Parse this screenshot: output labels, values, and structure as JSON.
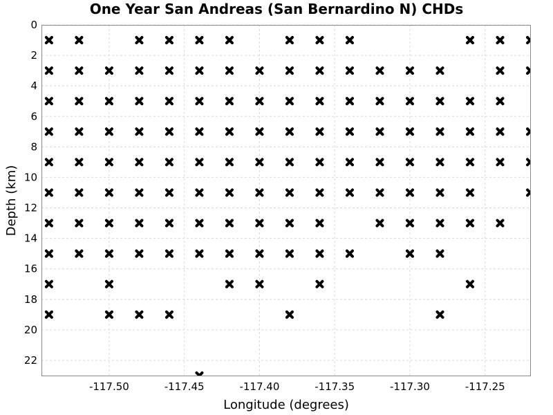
{
  "chart_data": {
    "type": "scatter",
    "title": "One Year San Andreas (San Bernardino N) CHDs",
    "xlabel": "Longitude (degrees)",
    "ylabel": "Depth (km)",
    "xlim": [
      -117.545,
      -117.22
    ],
    "ylim": [
      0,
      23
    ],
    "y_inverted": true,
    "grid": true,
    "marker": "x",
    "marker_color": "#000000",
    "x_ticks": [
      -117.5,
      -117.45,
      -117.4,
      -117.35,
      -117.3,
      -117.25
    ],
    "x_tick_labels": [
      "-117.50",
      "-117.45",
      "-117.40",
      "-117.35",
      "-117.30",
      "-117.25"
    ],
    "y_ticks": [
      0,
      2,
      4,
      6,
      8,
      10,
      12,
      14,
      16,
      18,
      20,
      22
    ],
    "y_tick_labels": [
      "0",
      "2",
      "4",
      "6",
      "8",
      "10",
      "12",
      "14",
      "16",
      "18",
      "20",
      "22"
    ],
    "points": [
      [
        -117.54,
        1
      ],
      [
        -117.52,
        1
      ],
      [
        -117.48,
        1
      ],
      [
        -117.46,
        1
      ],
      [
        -117.44,
        1
      ],
      [
        -117.42,
        1
      ],
      [
        -117.38,
        1
      ],
      [
        -117.36,
        1
      ],
      [
        -117.34,
        1
      ],
      [
        -117.26,
        1
      ],
      [
        -117.24,
        1
      ],
      [
        -117.22,
        1
      ],
      [
        -117.54,
        3
      ],
      [
        -117.52,
        3
      ],
      [
        -117.5,
        3
      ],
      [
        -117.48,
        3
      ],
      [
        -117.46,
        3
      ],
      [
        -117.44,
        3
      ],
      [
        -117.42,
        3
      ],
      [
        -117.4,
        3
      ],
      [
        -117.38,
        3
      ],
      [
        -117.36,
        3
      ],
      [
        -117.34,
        3
      ],
      [
        -117.32,
        3
      ],
      [
        -117.3,
        3
      ],
      [
        -117.28,
        3
      ],
      [
        -117.24,
        3
      ],
      [
        -117.22,
        3
      ],
      [
        -117.54,
        5
      ],
      [
        -117.52,
        5
      ],
      [
        -117.5,
        5
      ],
      [
        -117.48,
        5
      ],
      [
        -117.46,
        5
      ],
      [
        -117.44,
        5
      ],
      [
        -117.42,
        5
      ],
      [
        -117.4,
        5
      ],
      [
        -117.38,
        5
      ],
      [
        -117.36,
        5
      ],
      [
        -117.34,
        5
      ],
      [
        -117.32,
        5
      ],
      [
        -117.3,
        5
      ],
      [
        -117.28,
        5
      ],
      [
        -117.26,
        5
      ],
      [
        -117.24,
        5
      ],
      [
        -117.54,
        7
      ],
      [
        -117.52,
        7
      ],
      [
        -117.5,
        7
      ],
      [
        -117.48,
        7
      ],
      [
        -117.46,
        7
      ],
      [
        -117.44,
        7
      ],
      [
        -117.42,
        7
      ],
      [
        -117.4,
        7
      ],
      [
        -117.38,
        7
      ],
      [
        -117.36,
        7
      ],
      [
        -117.34,
        7
      ],
      [
        -117.32,
        7
      ],
      [
        -117.3,
        7
      ],
      [
        -117.28,
        7
      ],
      [
        -117.26,
        7
      ],
      [
        -117.24,
        7
      ],
      [
        -117.22,
        7
      ],
      [
        -117.54,
        9
      ],
      [
        -117.52,
        9
      ],
      [
        -117.5,
        9
      ],
      [
        -117.48,
        9
      ],
      [
        -117.46,
        9
      ],
      [
        -117.44,
        9
      ],
      [
        -117.42,
        9
      ],
      [
        -117.4,
        9
      ],
      [
        -117.38,
        9
      ],
      [
        -117.36,
        9
      ],
      [
        -117.34,
        9
      ],
      [
        -117.32,
        9
      ],
      [
        -117.3,
        9
      ],
      [
        -117.28,
        9
      ],
      [
        -117.26,
        9
      ],
      [
        -117.24,
        9
      ],
      [
        -117.22,
        9
      ],
      [
        -117.54,
        11
      ],
      [
        -117.52,
        11
      ],
      [
        -117.5,
        11
      ],
      [
        -117.48,
        11
      ],
      [
        -117.46,
        11
      ],
      [
        -117.44,
        11
      ],
      [
        -117.42,
        11
      ],
      [
        -117.4,
        11
      ],
      [
        -117.38,
        11
      ],
      [
        -117.36,
        11
      ],
      [
        -117.34,
        11
      ],
      [
        -117.32,
        11
      ],
      [
        -117.3,
        11
      ],
      [
        -117.28,
        11
      ],
      [
        -117.26,
        11
      ],
      [
        -117.22,
        11
      ],
      [
        -117.54,
        13
      ],
      [
        -117.52,
        13
      ],
      [
        -117.5,
        13
      ],
      [
        -117.48,
        13
      ],
      [
        -117.46,
        13
      ],
      [
        -117.44,
        13
      ],
      [
        -117.42,
        13
      ],
      [
        -117.4,
        13
      ],
      [
        -117.38,
        13
      ],
      [
        -117.36,
        13
      ],
      [
        -117.32,
        13
      ],
      [
        -117.3,
        13
      ],
      [
        -117.28,
        13
      ],
      [
        -117.26,
        13
      ],
      [
        -117.24,
        13
      ],
      [
        -117.54,
        15
      ],
      [
        -117.52,
        15
      ],
      [
        -117.5,
        15
      ],
      [
        -117.48,
        15
      ],
      [
        -117.46,
        15
      ],
      [
        -117.44,
        15
      ],
      [
        -117.42,
        15
      ],
      [
        -117.4,
        15
      ],
      [
        -117.38,
        15
      ],
      [
        -117.36,
        15
      ],
      [
        -117.34,
        15
      ],
      [
        -117.3,
        15
      ],
      [
        -117.28,
        15
      ],
      [
        -117.54,
        17
      ],
      [
        -117.5,
        17
      ],
      [
        -117.42,
        17
      ],
      [
        -117.4,
        17
      ],
      [
        -117.36,
        17
      ],
      [
        -117.26,
        17
      ],
      [
        -117.54,
        19
      ],
      [
        -117.5,
        19
      ],
      [
        -117.48,
        19
      ],
      [
        -117.46,
        19
      ],
      [
        -117.38,
        19
      ],
      [
        -117.28,
        19
      ],
      [
        -117.44,
        23
      ]
    ]
  }
}
